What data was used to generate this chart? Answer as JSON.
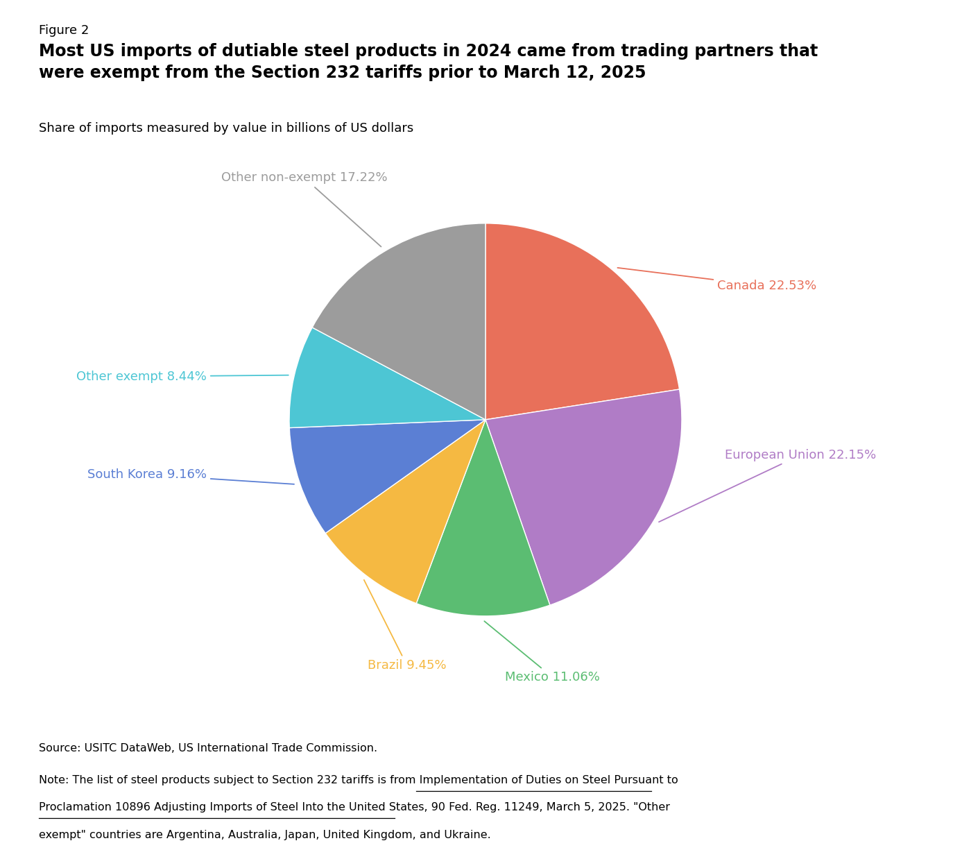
{
  "title_label": "Figure 2",
  "title": "Most US imports of dutiable steel products in 2024 came from trading partners that\nwere exempt from the Section 232 tariffs prior to March 12, 2025",
  "subtitle": "Share of imports measured by value in billions of US dollars",
  "slices": [
    {
      "label": "Canada",
      "pct": 22.53,
      "color": "#E8705A"
    },
    {
      "label": "European Union",
      "pct": 22.15,
      "color": "#B07CC6"
    },
    {
      "label": "Mexico",
      "pct": 11.06,
      "color": "#5BBD72"
    },
    {
      "label": "Brazil",
      "pct": 9.45,
      "color": "#F5B942"
    },
    {
      "label": "South Korea",
      "pct": 9.16,
      "color": "#5B7FD4"
    },
    {
      "label": "Other exempt",
      "pct": 8.44,
      "color": "#4DC6D4"
    },
    {
      "label": "Other non-exempt",
      "pct": 17.22,
      "color": "#9C9C9C"
    }
  ],
  "source_text": "Source: USITC DataWeb, US International Trade Commission.",
  "note_line1": "Note: The list of steel products subject to Section 232 tariffs is from Implementation of Duties on Steel Pursuant to",
  "note_line2": "Proclamation 10896 Adjusting Imports of Steel Into the United States, 90 Fed. Reg. 11249, March 5, 2025. \"Other",
  "note_line3": "exempt\" countries are Argentina, Australia, Japan, United Kingdom, and Ukraine.",
  "background_color": "#ffffff"
}
